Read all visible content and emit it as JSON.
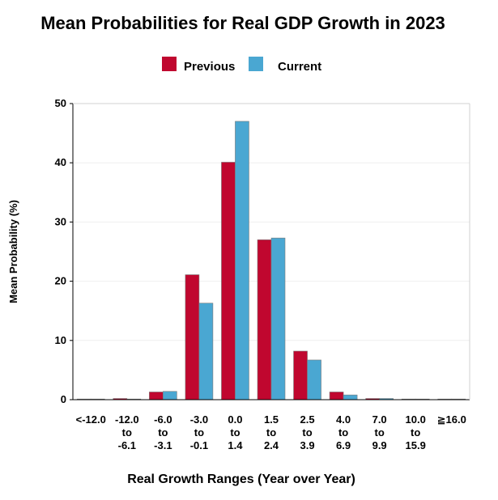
{
  "chart_data": {
    "type": "bar",
    "title": "Mean Probabilities for Real GDP Growth in 2023",
    "xlabel": "Real Growth Ranges (Year over Year)",
    "ylabel": "Mean Probability (%)",
    "ylim": [
      0,
      50
    ],
    "yticks": [
      0,
      10,
      20,
      30,
      40,
      50
    ],
    "grid": true,
    "legend_position": "top-center",
    "categories": [
      [
        "<-12.0"
      ],
      [
        "-12.0",
        "to",
        "-6.1"
      ],
      [
        "-6.0",
        "to",
        "-3.1"
      ],
      [
        "-3.0",
        "to",
        "-0.1"
      ],
      [
        "0.0",
        "to",
        "1.4"
      ],
      [
        "1.5",
        "to",
        "2.4"
      ],
      [
        "2.5",
        "to",
        "3.9"
      ],
      [
        "4.0",
        "to",
        "6.9"
      ],
      [
        "7.0",
        "to",
        "9.9"
      ],
      [
        "10.0",
        "to",
        "15.9"
      ],
      [
        "≧16.0"
      ]
    ],
    "series": [
      {
        "name": "Previous",
        "color": "#c0072f",
        "values": [
          0.0,
          0.2,
          1.3,
          21.1,
          40.1,
          27.0,
          8.2,
          1.3,
          0.2,
          0.0,
          0.0
        ]
      },
      {
        "name": "Current",
        "color": "#4aa7d2",
        "values": [
          0.0,
          0.1,
          1.4,
          16.3,
          47.0,
          27.3,
          6.7,
          0.8,
          0.2,
          0.0,
          0.0
        ]
      }
    ]
  }
}
